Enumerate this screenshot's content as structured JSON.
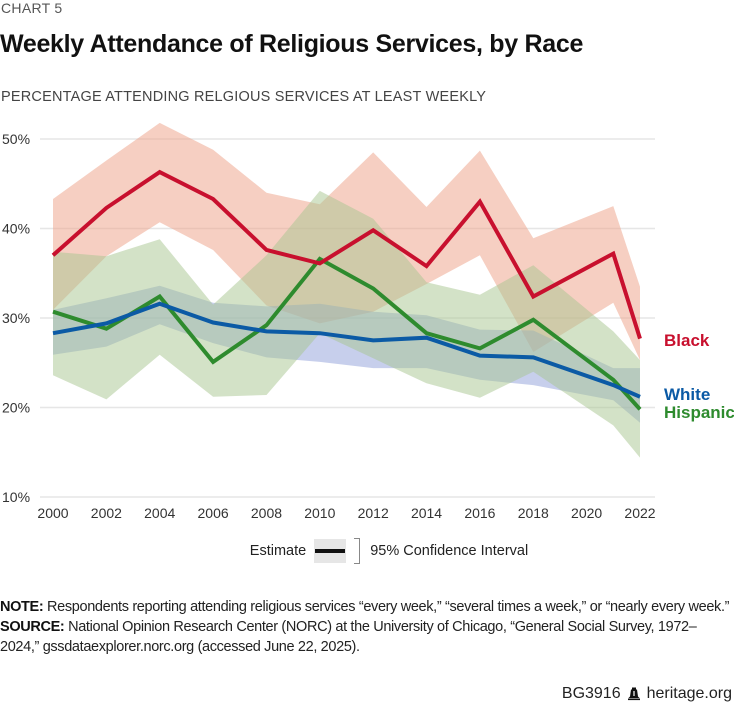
{
  "header": {
    "eyebrow": "CHART 5",
    "title": "Weekly Attendance of Religious Services, by Race",
    "subtitle": "PERCENTAGE ATTENDING RELGIOUS SERVICES AT LEAST WEEKLY"
  },
  "chart_data": {
    "type": "line",
    "title": "Weekly Attendance of Religious Services, by Race",
    "ylabel": "PERCENTAGE ATTENDING RELGIOUS SERVICES AT LEAST WEEKLY",
    "xlabel": "",
    "ylim": [
      10,
      50
    ],
    "xlim": [
      2000,
      2022
    ],
    "yticks": [
      10,
      20,
      30,
      40,
      50
    ],
    "ytick_labels": [
      "10%",
      "20%",
      "30%",
      "40%",
      "50%"
    ],
    "xticks": [
      2000,
      2002,
      2004,
      2006,
      2008,
      2010,
      2012,
      2014,
      2016,
      2018,
      2020,
      2022
    ],
    "xtick_labels": [
      "2000",
      "2002",
      "2004",
      "2006",
      "2008",
      "2010",
      "2012",
      "2014",
      "2016",
      "2018",
      "2020",
      "2022"
    ],
    "grid": "horizontal",
    "x": [
      2000,
      2002,
      2004,
      2006,
      2008,
      2010,
      2012,
      2014,
      2016,
      2018,
      2021,
      2022
    ],
    "series": [
      {
        "name": "Black",
        "color": "#C8102E",
        "band_color": "#EE9F86",
        "values": [
          37.0,
          42.3,
          46.3,
          43.3,
          37.6,
          36.1,
          39.8,
          35.8,
          43.0,
          32.4,
          37.2,
          27.7
        ],
        "ci_upper": [
          43.3,
          47.6,
          51.8,
          48.8,
          44.0,
          42.7,
          48.5,
          42.4,
          48.7,
          38.9,
          42.5,
          33.5
        ],
        "ci_lower": [
          30.9,
          36.9,
          40.7,
          37.6,
          31.4,
          29.4,
          30.7,
          33.8,
          37.0,
          26.2,
          31.7,
          25.3
        ]
      },
      {
        "name": "White",
        "color": "#0B5AA5",
        "band_color": "#8FA0DA",
        "values": [
          28.3,
          29.4,
          31.6,
          29.5,
          28.5,
          28.3,
          27.5,
          27.8,
          25.8,
          25.6,
          22.5,
          21.2
        ],
        "ci_upper": [
          30.9,
          32.2,
          33.6,
          31.7,
          31.3,
          31.6,
          30.7,
          30.3,
          28.7,
          28.6,
          24.4,
          24.4
        ],
        "ci_lower": [
          25.9,
          26.8,
          29.3,
          27.2,
          25.6,
          25.1,
          24.4,
          24.4,
          23.1,
          22.5,
          20.8,
          18.3
        ]
      },
      {
        "name": "Hispanic",
        "color": "#2E8B2E",
        "band_color": "#A8C590",
        "values": [
          30.7,
          28.8,
          32.4,
          25.1,
          29.2,
          36.6,
          33.3,
          28.3,
          26.6,
          29.8,
          23.1,
          19.8
        ],
        "ci_upper": [
          37.4,
          36.9,
          38.8,
          31.5,
          37.0,
          44.2,
          41.1,
          34.0,
          32.6,
          35.9,
          28.5,
          25.3
        ],
        "ci_lower": [
          23.6,
          20.9,
          25.9,
          21.2,
          21.4,
          28.3,
          25.5,
          22.7,
          21.1,
          24.0,
          18.0,
          14.4
        ]
      }
    ],
    "legend": {
      "estimate_label": "Estimate",
      "ci_label": "95% Confidence Interval",
      "placement": "bottom-center"
    },
    "series_labels_placement": "right"
  },
  "notes": {
    "note_label": "NOTE:",
    "note_text": " Respondents reporting attending religious services “every week,” “several times a week,” or “nearly every week.”",
    "source_label": "SOURCE:",
    "source_text": " National Opinion Research Center (NORC) at the University of Chicago, “General Social Survey, 1972–2024,” gssdataexplorer.norc.org (accessed June 22, 2025)."
  },
  "footer": {
    "code": "BG3916",
    "icon": "liberty-bell-icon",
    "site": "heritage.org"
  }
}
